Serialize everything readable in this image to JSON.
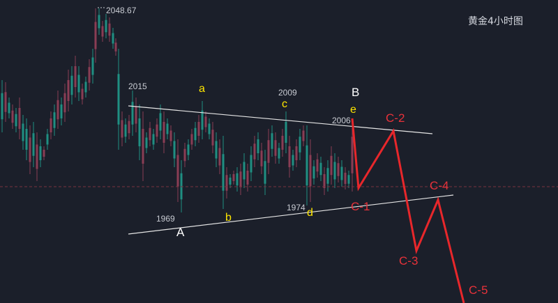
{
  "chart_data": {
    "type": "candlestick",
    "title": "黄金4小时图",
    "theme": {
      "background": "#1b1f2a",
      "up": "#1f8f82",
      "down": "#8a3d54",
      "trendline": "#e6e6e6",
      "projection": "#e8272b",
      "wave_label_major": "#ffffff",
      "wave_label_minor": "#ffe600",
      "price_label": "#c9ccd3",
      "projection_label": "#e8323a"
    },
    "reference_line": {
      "style": "dashed",
      "color": "#7a3340",
      "price": 1986
    },
    "price_labels": [
      {
        "text": "2048.67",
        "price": 2048.67
      },
      {
        "text": "2015",
        "price": 2015
      },
      {
        "text": "2009",
        "price": 2009
      },
      {
        "text": "2006",
        "price": 2006
      },
      {
        "text": "1974",
        "price": 1974
      },
      {
        "text": "1969",
        "price": 1969
      }
    ],
    "wave_labels_major": [
      "A",
      "B"
    ],
    "wave_labels_minor": [
      "a",
      "b",
      "c",
      "d",
      "e"
    ],
    "projection_labels": [
      "C-1",
      "C-2",
      "C-3",
      "C-4",
      "C-5"
    ],
    "trendlines": [
      {
        "name": "upper",
        "from": 2015,
        "to": 2005
      },
      {
        "name": "lower",
        "from": 1969,
        "to": 1983
      }
    ]
  }
}
